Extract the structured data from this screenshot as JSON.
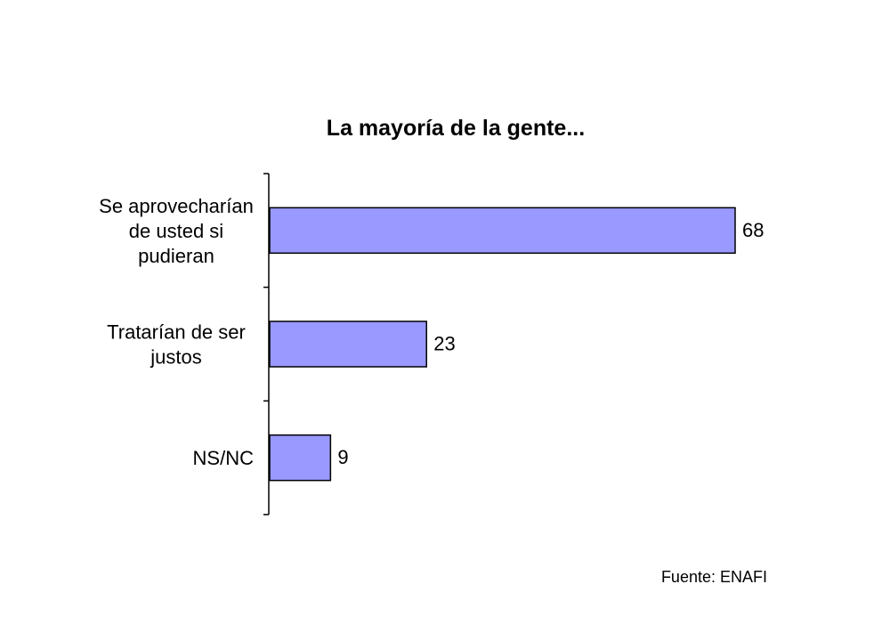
{
  "chart_data": {
    "type": "bar",
    "orientation": "horizontal",
    "title": "La mayoría de la gente...",
    "categories": [
      [
        "Se aprovecharían",
        "de usted si",
        "pudieran"
      ],
      [
        "Tratarían de ser",
        "justos"
      ],
      [
        "NS/NC"
      ]
    ],
    "values": [
      68,
      23,
      9
    ],
    "data_labels": [
      "68",
      "23",
      "9"
    ],
    "xlim": [
      0,
      100
    ],
    "bar_color": "#9999ff",
    "bar_border_color": "#000000",
    "grid": false,
    "legend": "none"
  },
  "footer": {
    "source": "Fuente: ENAFI"
  }
}
